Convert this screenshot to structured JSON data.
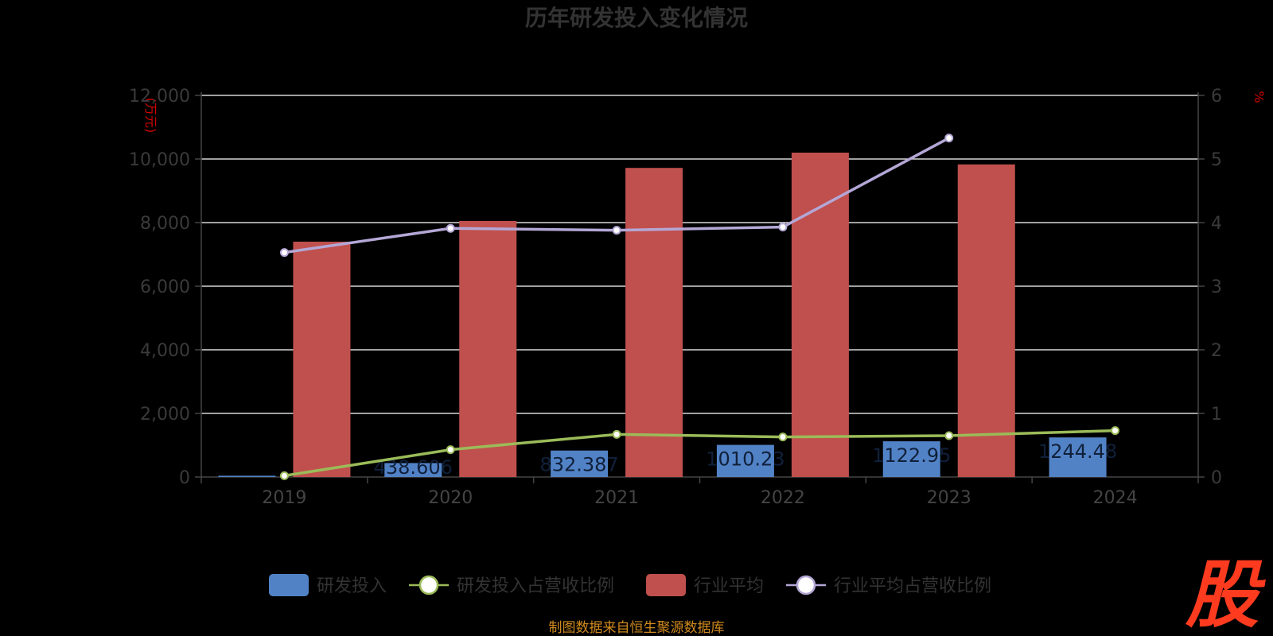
{
  "title": "历年研发投入变化情况",
  "source": "制图数据来自恒生聚源数据库",
  "logo_text": "股",
  "colors": {
    "rd": "#5282c6",
    "rd_ratio": "#9bbb59",
    "industry": "#c0504d",
    "industry_ratio": "#b4a7d6",
    "grid": "#ffffff",
    "axis": "#444444",
    "logo": "#ff3b1f",
    "source": "#d08a1e"
  },
  "chart_data": {
    "type": "bar",
    "categories": [
      "2019",
      "2020",
      "2021",
      "2022",
      "2023",
      "2024"
    ],
    "left_axis": {
      "unit": "(万元)",
      "ylim": [
        0,
        12000
      ],
      "ticks": [
        "0",
        "2,000",
        "4,000",
        "6,000",
        "8,000",
        "10,000",
        "12,000"
      ]
    },
    "right_axis": {
      "unit": "%",
      "ylim": [
        0,
        6
      ],
      "ticks": [
        "0",
        "1",
        "2",
        "3",
        "4",
        "5",
        "6"
      ]
    },
    "series": [
      {
        "name": "研发投入",
        "type": "bar",
        "axis": "left",
        "values": [
          40,
          438.606,
          832.387,
          1010.23,
          1122.95,
          1244.48
        ],
        "labels": [
          "",
          "438.606",
          "832.387",
          "1010.23",
          "1122.95",
          "1244.48"
        ]
      },
      {
        "name": "研发投入占营收比例",
        "type": "line",
        "axis": "right",
        "values": [
          0.02,
          0.43,
          0.67,
          0.63,
          0.65,
          0.73
        ]
      },
      {
        "name": "行业平均",
        "type": "bar",
        "axis": "left",
        "values": [
          7400,
          8050,
          9720,
          10200,
          9830,
          null
        ]
      },
      {
        "name": "行业平均占营收比例",
        "type": "line",
        "axis": "right",
        "values": [
          3.53,
          3.91,
          3.88,
          3.93,
          5.33,
          null
        ]
      }
    ],
    "grid": true,
    "legend_position": "bottom"
  }
}
